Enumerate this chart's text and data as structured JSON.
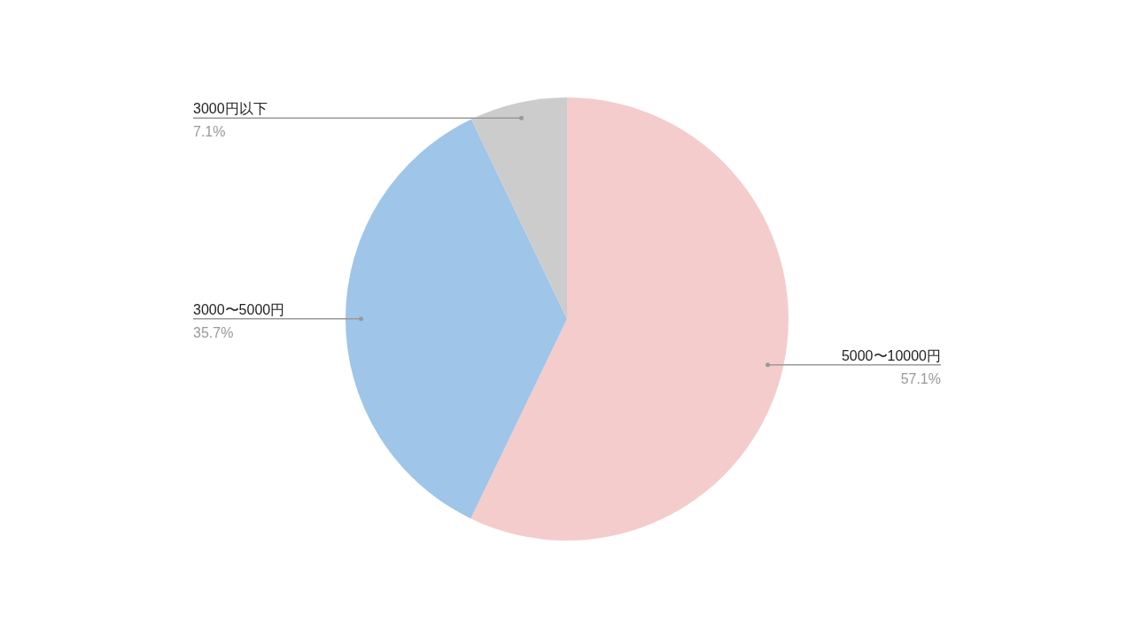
{
  "chart_data": {
    "type": "pie",
    "categories": [
      "5000〜10000円",
      "3000〜5000円",
      "3000円以下"
    ],
    "values": [
      57.1,
      35.7,
      7.1
    ],
    "colors": [
      "#f4cccc",
      "#9fc5e8",
      "#cccccc"
    ],
    "value_labels": [
      "57.1%",
      "35.7%",
      "7.1%"
    ]
  }
}
